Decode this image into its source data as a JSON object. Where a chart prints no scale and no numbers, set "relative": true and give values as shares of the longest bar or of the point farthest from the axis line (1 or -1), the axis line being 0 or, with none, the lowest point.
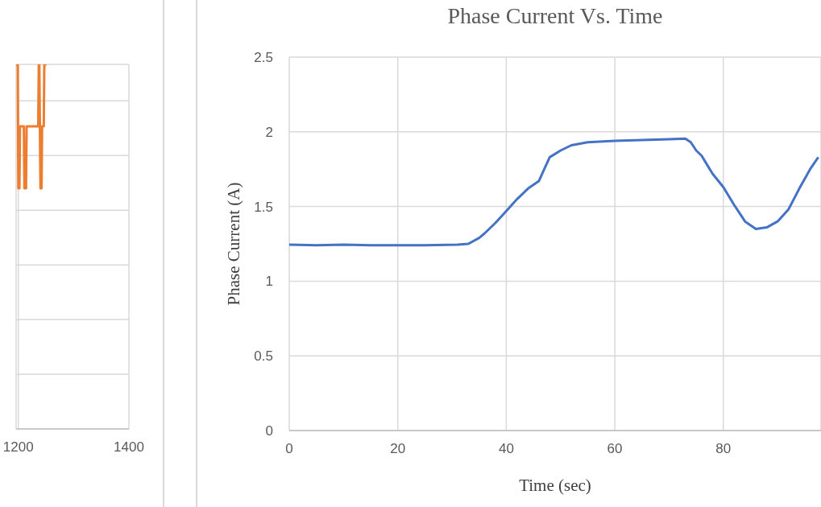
{
  "chart_data": [
    {
      "type": "line",
      "relative": true,
      "xlim": [
        1196,
        1400
      ],
      "xticks": [
        1200,
        1400
      ],
      "grid": true,
      "marker": "none",
      "line_style": "solid",
      "series": [
        {
          "color": "#ed7d31",
          "x": [
            1196,
            1199,
            1200,
            1202,
            1203,
            1210,
            1211,
            1214,
            1215,
            1236,
            1237,
            1238,
            1239,
            1240,
            1242,
            1243,
            1246,
            1247,
            1251
          ],
          "values": [
            1,
            1,
            0.66,
            0.66,
            0.83,
            0.83,
            0.66,
            0.66,
            0.83,
            0.83,
            1,
            1,
            0.83,
            0.66,
            0.66,
            0.83,
            0.83,
            1,
            1
          ]
        }
      ]
    },
    {
      "type": "line",
      "title": "Phase Current Vs. Time",
      "xlabel": "Time (sec)",
      "ylabel": "Phase Current (A)",
      "xlim": [
        0,
        98
      ],
      "xticks": [
        0,
        20,
        40,
        60,
        80
      ],
      "ylim": [
        0,
        2.5
      ],
      "yticks": [
        0,
        0.5,
        1,
        1.5,
        2,
        2.5
      ],
      "grid": true,
      "marker": "none",
      "line_style": "solid",
      "series": [
        {
          "color": "#4472c4",
          "x": [
            0,
            5,
            10,
            15,
            20,
            25,
            31,
            33,
            35,
            36,
            38,
            40,
            42,
            44,
            46,
            47,
            48,
            50,
            52,
            55,
            60,
            65,
            70,
            73,
            74,
            75,
            76,
            77,
            78,
            80,
            82,
            84,
            86,
            88,
            90,
            92,
            94,
            96,
            97.5
          ],
          "values": [
            1.245,
            1.24,
            1.245,
            1.24,
            1.24,
            1.24,
            1.245,
            1.25,
            1.29,
            1.32,
            1.39,
            1.47,
            1.55,
            1.62,
            1.67,
            1.75,
            1.83,
            1.875,
            1.91,
            1.93,
            1.94,
            1.945,
            1.95,
            1.955,
            1.93,
            1.875,
            1.84,
            1.78,
            1.72,
            1.63,
            1.51,
            1.4,
            1.35,
            1.36,
            1.4,
            1.48,
            1.62,
            1.75,
            1.83
          ]
        }
      ]
    }
  ]
}
